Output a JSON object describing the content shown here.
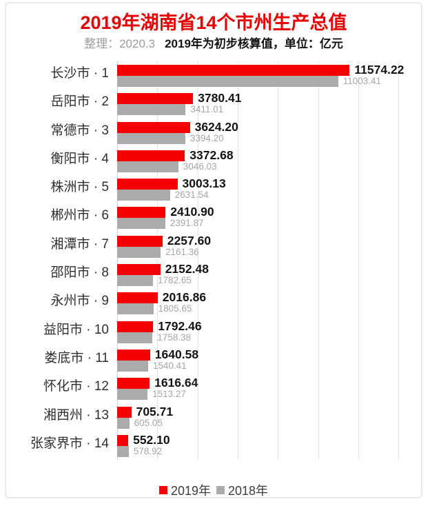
{
  "title": "2019年湖南省14个市州生产总值",
  "subtitle": {
    "source": "整理：2020.3",
    "note": "2019年为初步核算值，单位：亿元"
  },
  "colors": {
    "bar_2019": "#f40000",
    "bar_2018": "#ababab",
    "title_red": "#e60000",
    "gridline": "#f2dede",
    "axis_line": "#d6d6d6",
    "value_2018_text": "#a6a6a6"
  },
  "legend": [
    "2019年",
    "2018年"
  ],
  "chart_data": {
    "type": "bar",
    "orientation": "horizontal",
    "title": "2019年湖南省14个市州生产总值",
    "unit": "亿元",
    "xlim": [
      0,
      14000
    ],
    "gridline_interval": 2000,
    "grid": true,
    "legend_position": "bottom",
    "value_labels": true,
    "categories": [
      "长沙市 · 1",
      "岳阳市 · 2",
      "常德市 · 3",
      "衡阳市 · 4",
      "株洲市 · 5",
      "郴州市 · 6",
      "湘潭市 · 7",
      "邵阳市 · 8",
      "永州市 · 9",
      "益阳市 · 10",
      "娄底市 · 11",
      "怀化市 · 12",
      "湘西州 · 13",
      "张家界市 · 14"
    ],
    "series": [
      {
        "name": "2019年",
        "color": "#f40000",
        "values": [
          11574.22,
          3780.41,
          3624.2,
          3372.68,
          3003.13,
          2410.9,
          2257.6,
          2152.48,
          2016.86,
          1792.46,
          1640.58,
          1616.64,
          705.71,
          552.1
        ]
      },
      {
        "name": "2018年",
        "color": "#ababab",
        "values": [
          11003.41,
          3411.01,
          3394.2,
          3046.03,
          2631.54,
          2391.87,
          2161.36,
          1782.65,
          1805.65,
          1758.38,
          1540.41,
          1513.27,
          605.05,
          578.92
        ]
      }
    ]
  }
}
